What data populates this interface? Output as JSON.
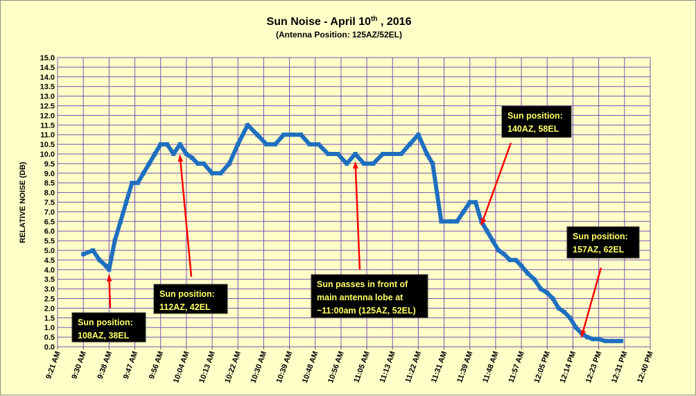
{
  "chart_data": {
    "type": "line",
    "title": "Sun Noise - April 10",
    "title_sup": "th",
    "title_suffix": " , 2016",
    "subtitle": "(Antenna Position: 125AZ/52EL)",
    "ylabel": "RELATIVE NOISE (DB)",
    "xlabel": "",
    "ylim": [
      0,
      15
    ],
    "y_ticks": [
      "0.0",
      "0.5",
      "1.0",
      "1.5",
      "2.0",
      "2.5",
      "3.0",
      "3.5",
      "4.0",
      "4.5",
      "5.0",
      "5.5",
      "6.0",
      "6.5",
      "7.0",
      "7.5",
      "8.0",
      "8.5",
      "9.0",
      "9.5",
      "10.0",
      "10.5",
      "11.0",
      "11.5",
      "12.0",
      "12.5",
      "13.0",
      "13.5",
      "14.0",
      "14.5",
      "15.0"
    ],
    "x_ticks": [
      "9:21 AM",
      "9:30 AM",
      "9:38 AM",
      "9:47 AM",
      "9:56 AM",
      "10:04 AM",
      "10:13 AM",
      "10:22 AM",
      "10:30 AM",
      "10:39 AM",
      "10:48 AM",
      "10:56 AM",
      "11:05 AM",
      "11:13 AM",
      "11:22 AM",
      "11:31 AM",
      "11:39 AM",
      "11:48 AM",
      "11:57 AM",
      "12:05 PM",
      "12:14 PM",
      "12:23 PM",
      "12:31 PM",
      "12:40 PM"
    ],
    "grid": true,
    "series": [
      {
        "color": "#1f6fc0",
        "x": [
          "9:30 AM",
          "9:33 AM",
          "9:35 AM",
          "9:37 AM",
          "9:38 AM",
          "9:40 AM",
          "9:42 AM",
          "9:44 AM",
          "9:46 AM",
          "9:48 AM",
          "9:50 AM",
          "9:52 AM",
          "9:54 AM",
          "9:56 AM",
          "9:58 AM",
          "10:00 AM",
          "10:02 AM",
          "10:04 AM",
          "10:06 AM",
          "10:08 AM",
          "10:10 AM",
          "10:13 AM",
          "10:16 AM",
          "10:19 AM",
          "10:22 AM",
          "10:25 AM",
          "10:28 AM",
          "10:31 AM",
          "10:34 AM",
          "10:37 AM",
          "10:40 AM",
          "10:43 AM",
          "10:46 AM",
          "10:49 AM",
          "10:52 AM",
          "10:55 AM",
          "10:58 AM",
          "11:01 AM",
          "11:04 AM",
          "11:07 AM",
          "11:10 AM",
          "11:13 AM",
          "11:16 AM",
          "11:19 AM",
          "11:22 AM",
          "11:25 AM",
          "11:27 AM",
          "11:30 AM",
          "11:33 AM",
          "11:35 AM",
          "11:37 AM",
          "11:39 AM",
          "11:41 AM",
          "11:43 AM",
          "11:45 AM",
          "11:47 AM",
          "11:49 AM",
          "11:51 AM",
          "11:53 AM",
          "11:55 AM",
          "11:57 AM",
          "11:59 AM",
          "12:01 PM",
          "12:03 PM",
          "12:05 PM",
          "12:07 PM",
          "12:09 PM",
          "12:11 PM",
          "12:13 PM",
          "12:15 PM",
          "12:17 PM",
          "12:19 PM",
          "12:21 PM",
          "12:23 PM",
          "12:25 PM",
          "12:27 PM",
          "12:29 PM",
          "12:30 PM"
        ],
        "values": [
          4.8,
          5.0,
          4.5,
          4.2,
          4.0,
          5.5,
          6.5,
          7.5,
          8.5,
          8.5,
          9.0,
          9.5,
          10.0,
          10.5,
          10.5,
          10.0,
          10.5,
          10.0,
          9.8,
          9.5,
          9.5,
          9.0,
          9.0,
          9.5,
          10.5,
          11.5,
          11.0,
          10.5,
          10.5,
          11.0,
          11.0,
          11.0,
          10.5,
          10.5,
          10.0,
          10.0,
          9.5,
          10.0,
          9.5,
          9.5,
          10.0,
          10.0,
          10.0,
          10.5,
          11.0,
          10.0,
          9.5,
          6.5,
          6.5,
          6.5,
          7.0,
          7.5,
          7.5,
          6.5,
          6.0,
          5.5,
          5.0,
          4.8,
          4.5,
          4.5,
          4.2,
          3.8,
          3.5,
          3.0,
          2.8,
          2.5,
          2.0,
          1.8,
          1.5,
          1.0,
          0.7,
          0.5,
          0.4,
          0.4,
          0.3,
          0.3,
          0.3,
          0.3
        ]
      }
    ],
    "annotations": [
      {
        "lines": [
          "Sun position:",
          "108AZ, 38EL"
        ],
        "target": "9:38 AM"
      },
      {
        "lines": [
          "Sun position:",
          "112AZ, 42EL"
        ],
        "target": "10:02 AM"
      },
      {
        "lines": [
          "Sun passes in front of",
          "main antenna lobe at",
          "~11:00am  (125AZ, 52EL)"
        ],
        "target": "11:01 AM"
      },
      {
        "lines": [
          "Sun position:",
          "140AZ, 58EL"
        ],
        "target": "11:43 AM"
      },
      {
        "lines": [
          "Sun position:",
          "157AZ, 62EL"
        ],
        "target": "12:17 PM"
      }
    ]
  }
}
